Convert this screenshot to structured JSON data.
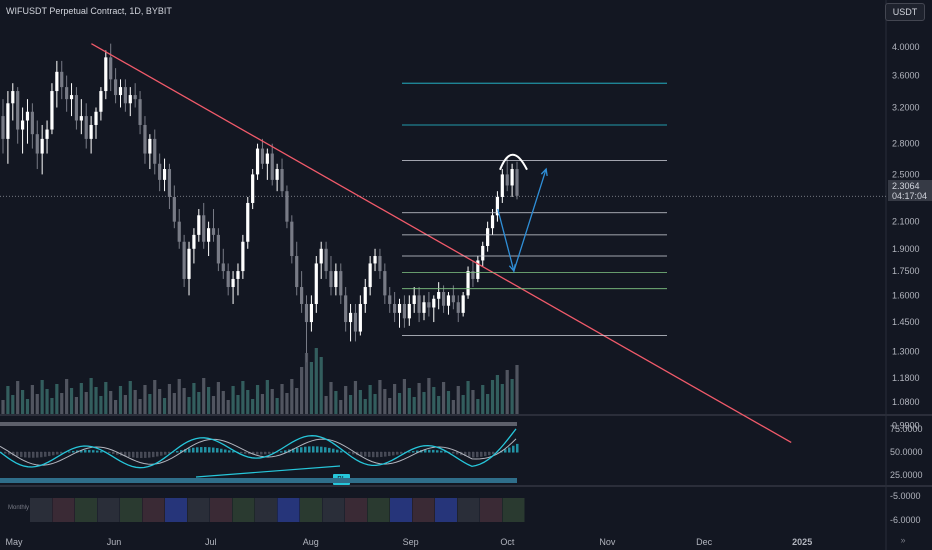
{
  "header": {
    "title": "WIFUSDT Perpetual Contract, 1D, BYBIT"
  },
  "toolbar": {
    "currency_label": "USDT"
  },
  "price_tag": {
    "price": "2.3064",
    "countdown": "04:17:04"
  },
  "oscillator": {
    "signal_label": "BL",
    "lower_pane_label": "Monthly"
  },
  "colors": {
    "up": "#26a69a",
    "down": "#787b86",
    "candle_up": "#ffffff",
    "trendline": "#f05a6a",
    "fib": "#d1d4dc",
    "projection": "#2f8fd8",
    "osc_fast": "#26c6da",
    "osc_slow": "#b2b5be"
  },
  "chart_data": {
    "type": "candlestick",
    "symbol": "WIFUSDT",
    "timeframe": "1D",
    "y_scale": "log",
    "y_tick_labels": [
      "4.0000",
      "3.6000",
      "3.2000",
      "2.8000",
      "2.5000",
      "2.1000",
      "1.9000",
      "1.7500",
      "1.6000",
      "1.4500",
      "1.3000",
      "1.1800",
      "1.0800",
      "0.9900"
    ],
    "x_tick_labels": [
      "May",
      "Jun",
      "Jul",
      "Aug",
      "Sep",
      "Oct",
      "Nov",
      "Dec",
      "2025"
    ],
    "osc_tick_labels": [
      "75.0000",
      "50.0000",
      "25.0000"
    ],
    "lower_tick_labels": [
      "-5.0000",
      "-6.0000"
    ],
    "current_price": 2.3064,
    "candles_ohlc_approx": [
      [
        3.1,
        3.3,
        2.7,
        2.85
      ],
      [
        2.85,
        3.4,
        2.6,
        3.25
      ],
      [
        3.25,
        3.5,
        3.05,
        3.4
      ],
      [
        3.4,
        3.45,
        2.8,
        2.95
      ],
      [
        2.95,
        3.2,
        2.7,
        3.05
      ],
      [
        3.05,
        3.3,
        2.8,
        3.15
      ],
      [
        3.15,
        3.25,
        2.75,
        2.9
      ],
      [
        2.9,
        3.05,
        2.55,
        2.7
      ],
      [
        2.7,
        3.0,
        2.5,
        2.85
      ],
      [
        2.85,
        3.05,
        2.7,
        2.95
      ],
      [
        2.95,
        3.5,
        2.9,
        3.4
      ],
      [
        3.4,
        3.8,
        3.2,
        3.65
      ],
      [
        3.65,
        3.8,
        3.3,
        3.45
      ],
      [
        3.45,
        3.6,
        3.15,
        3.3
      ],
      [
        3.3,
        3.5,
        3.1,
        3.35
      ],
      [
        3.35,
        3.45,
        2.95,
        3.05
      ],
      [
        3.05,
        3.3,
        2.9,
        3.1
      ],
      [
        3.1,
        3.25,
        2.75,
        2.85
      ],
      [
        2.85,
        3.1,
        2.7,
        3.0
      ],
      [
        3.0,
        3.2,
        2.85,
        3.15
      ],
      [
        3.15,
        3.45,
        3.05,
        3.4
      ],
      [
        3.4,
        3.95,
        3.3,
        3.85
      ],
      [
        3.85,
        4.05,
        3.4,
        3.55
      ],
      [
        3.55,
        3.7,
        3.25,
        3.35
      ],
      [
        3.35,
        3.55,
        3.2,
        3.45
      ],
      [
        3.45,
        3.55,
        3.15,
        3.25
      ],
      [
        3.25,
        3.45,
        3.1,
        3.35
      ],
      [
        3.35,
        3.5,
        3.2,
        3.3
      ],
      [
        3.3,
        3.4,
        2.9,
        3.0
      ],
      [
        3.0,
        3.1,
        2.6,
        2.7
      ],
      [
        2.7,
        2.9,
        2.55,
        2.85
      ],
      [
        2.85,
        2.95,
        2.5,
        2.6
      ],
      [
        2.6,
        2.7,
        2.35,
        2.45
      ],
      [
        2.45,
        2.65,
        2.35,
        2.55
      ],
      [
        2.55,
        2.6,
        2.2,
        2.3
      ],
      [
        2.3,
        2.4,
        2.05,
        2.1
      ],
      [
        2.1,
        2.2,
        1.9,
        1.95
      ],
      [
        1.95,
        2.0,
        1.65,
        1.7
      ],
      [
        1.7,
        1.95,
        1.6,
        1.9
      ],
      [
        1.9,
        2.05,
        1.8,
        2.0
      ],
      [
        2.0,
        2.2,
        1.95,
        2.15
      ],
      [
        2.15,
        2.25,
        1.9,
        1.95
      ],
      [
        1.95,
        2.1,
        1.85,
        2.05
      ],
      [
        2.05,
        2.2,
        1.95,
        2.0
      ],
      [
        2.0,
        2.05,
        1.75,
        1.8
      ],
      [
        1.8,
        1.9,
        1.7,
        1.75
      ],
      [
        1.75,
        1.8,
        1.6,
        1.65
      ],
      [
        1.65,
        1.75,
        1.55,
        1.7
      ],
      [
        1.7,
        1.8,
        1.6,
        1.75
      ],
      [
        1.75,
        2.0,
        1.7,
        1.95
      ],
      [
        1.95,
        2.3,
        1.9,
        2.25
      ],
      [
        2.25,
        2.55,
        2.2,
        2.5
      ],
      [
        2.5,
        2.8,
        2.45,
        2.75
      ],
      [
        2.75,
        2.85,
        2.55,
        2.6
      ],
      [
        2.6,
        2.75,
        2.45,
        2.7
      ],
      [
        2.7,
        2.8,
        2.4,
        2.45
      ],
      [
        2.45,
        2.6,
        2.35,
        2.55
      ],
      [
        2.55,
        2.65,
        2.3,
        2.35
      ],
      [
        2.35,
        2.4,
        2.05,
        2.1
      ],
      [
        2.1,
        2.15,
        1.8,
        1.85
      ],
      [
        1.85,
        1.95,
        1.6,
        1.65
      ],
      [
        1.65,
        1.75,
        1.5,
        1.55
      ],
      [
        1.55,
        1.6,
        1.25,
        1.45
      ],
      [
        1.45,
        1.6,
        1.4,
        1.55
      ],
      [
        1.55,
        1.85,
        1.5,
        1.8
      ],
      [
        1.8,
        1.95,
        1.7,
        1.9
      ],
      [
        1.9,
        1.95,
        1.7,
        1.75
      ],
      [
        1.75,
        1.85,
        1.6,
        1.65
      ],
      [
        1.65,
        1.8,
        1.6,
        1.75
      ],
      [
        1.75,
        1.8,
        1.55,
        1.6
      ],
      [
        1.6,
        1.65,
        1.4,
        1.45
      ],
      [
        1.45,
        1.55,
        1.35,
        1.5
      ],
      [
        1.5,
        1.55,
        1.35,
        1.4
      ],
      [
        1.4,
        1.6,
        1.38,
        1.55
      ],
      [
        1.55,
        1.7,
        1.5,
        1.65
      ],
      [
        1.65,
        1.85,
        1.6,
        1.8
      ],
      [
        1.8,
        1.9,
        1.75,
        1.85
      ],
      [
        1.85,
        1.9,
        1.7,
        1.75
      ],
      [
        1.75,
        1.8,
        1.55,
        1.6
      ],
      [
        1.6,
        1.65,
        1.5,
        1.55
      ],
      [
        1.55,
        1.62,
        1.45,
        1.5
      ],
      [
        1.5,
        1.58,
        1.42,
        1.55
      ],
      [
        1.55,
        1.6,
        1.42,
        1.47
      ],
      [
        1.47,
        1.6,
        1.43,
        1.55
      ],
      [
        1.55,
        1.65,
        1.5,
        1.6
      ],
      [
        1.6,
        1.65,
        1.45,
        1.5
      ],
      [
        1.5,
        1.6,
        1.46,
        1.56
      ],
      [
        1.56,
        1.62,
        1.48,
        1.53
      ],
      [
        1.53,
        1.6,
        1.45,
        1.58
      ],
      [
        1.58,
        1.68,
        1.52,
        1.62
      ],
      [
        1.62,
        1.66,
        1.5,
        1.54
      ],
      [
        1.54,
        1.62,
        1.49,
        1.6
      ],
      [
        1.6,
        1.66,
        1.52,
        1.56
      ],
      [
        1.56,
        1.6,
        1.45,
        1.5
      ],
      [
        1.5,
        1.62,
        1.48,
        1.6
      ],
      [
        1.6,
        1.78,
        1.58,
        1.75
      ],
      [
        1.75,
        1.82,
        1.65,
        1.7
      ],
      [
        1.7,
        1.85,
        1.68,
        1.82
      ],
      [
        1.82,
        1.95,
        1.78,
        1.92
      ],
      [
        1.92,
        2.1,
        1.88,
        2.05
      ],
      [
        2.05,
        2.2,
        2.0,
        2.15
      ],
      [
        2.15,
        2.35,
        2.1,
        2.3
      ],
      [
        2.3,
        2.55,
        2.25,
        2.5
      ],
      [
        2.5,
        2.65,
        2.35,
        2.4
      ],
      [
        2.4,
        2.6,
        2.3,
        2.55
      ],
      [
        2.55,
        2.62,
        2.28,
        2.31
      ]
    ],
    "trendline_points": [
      {
        "date": "May 25",
        "price": 4.05
      },
      {
        "date": "Dec 28",
        "price": 0.93
      }
    ],
    "fib_levels": [
      3.5,
      3.0,
      2.63,
      2.17,
      2.0,
      1.85,
      1.74,
      1.64,
      1.38
    ],
    "projection_path": [
      {
        "date": "Sep 28",
        "price": 2.2
      },
      {
        "date": "Oct 3",
        "price": 1.75
      },
      {
        "date": "Oct 13",
        "price": 2.55
      }
    ]
  }
}
